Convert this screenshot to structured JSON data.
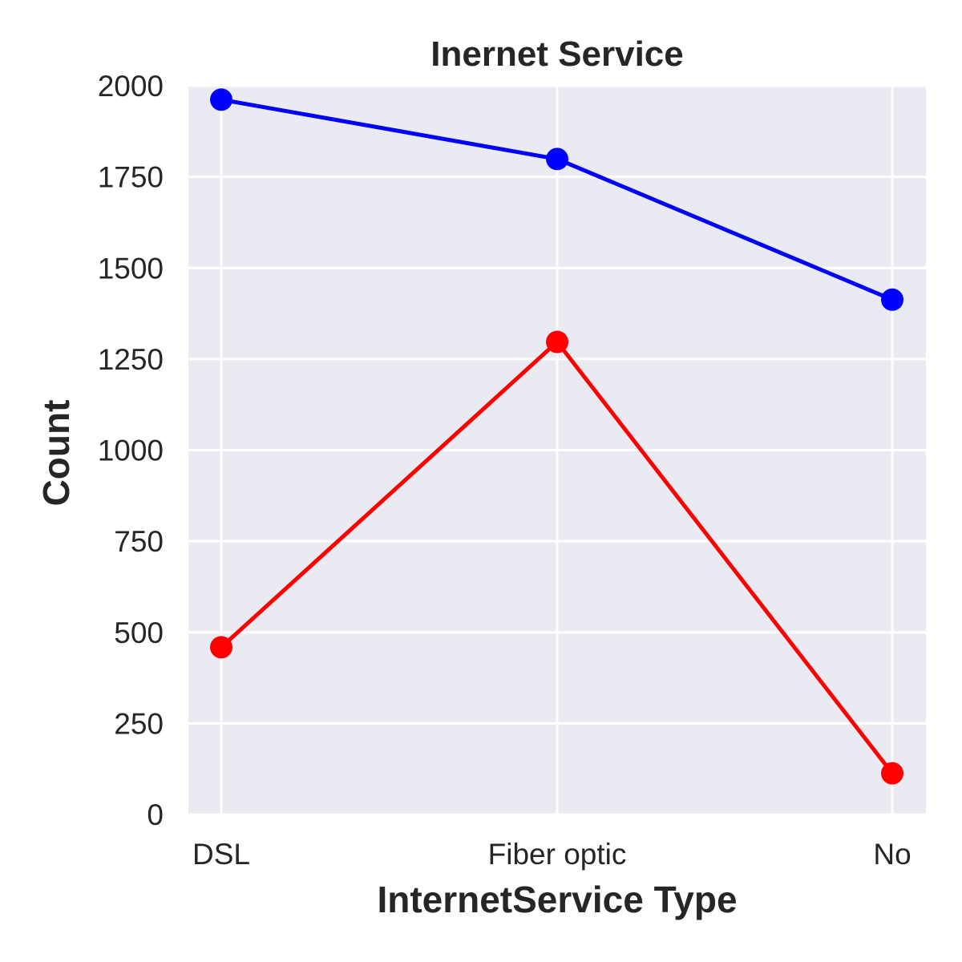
{
  "chart_data": {
    "type": "line",
    "title": "Inernet Service",
    "xlabel": "InternetService Type",
    "ylabel": "Count",
    "categories": [
      "DSL",
      "Fiber optic",
      "No"
    ],
    "ylim": [
      0,
      2000
    ],
    "yticks": [
      0,
      250,
      500,
      750,
      1000,
      1250,
      1500,
      1750,
      2000
    ],
    "grid": true,
    "series": [
      {
        "color": "#0000ff",
        "values": [
          1962,
          1799,
          1413
        ]
      },
      {
        "color": "#ff0000",
        "values": [
          459,
          1297,
          113
        ]
      }
    ]
  }
}
